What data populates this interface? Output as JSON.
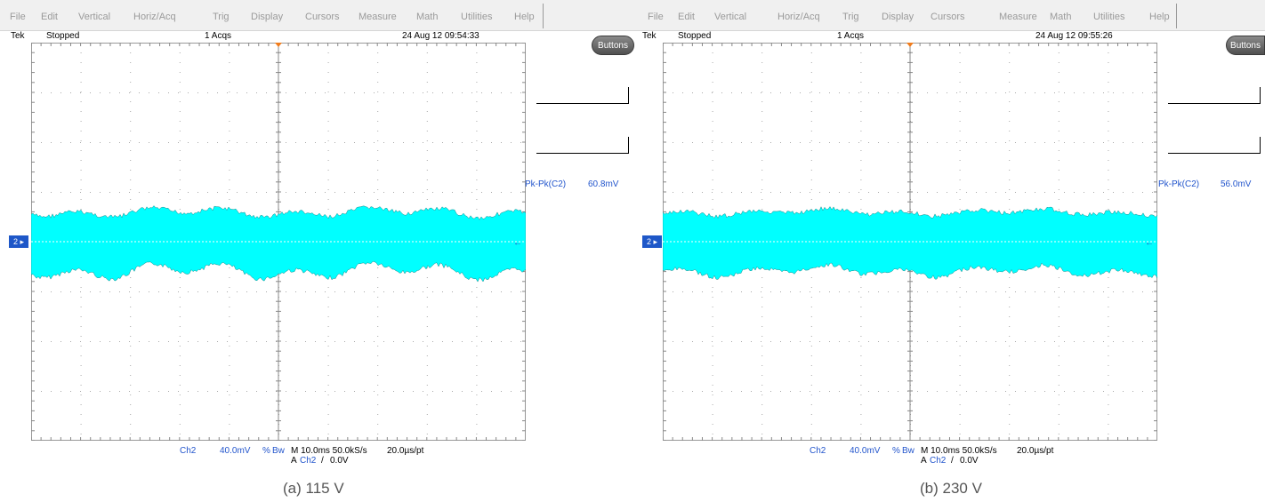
{
  "panels": [
    {
      "menu": [
        "File",
        "Edit",
        "Vertical",
        "Horiz/Acq",
        "Trig",
        "Display",
        "Cursors",
        "Measure",
        "Math",
        "Utilities",
        "Help"
      ],
      "status": {
        "brand": "Tek",
        "state": "Stopped",
        "acqs": "1 Acqs",
        "datetime": "24 Aug 12 09:54:33"
      },
      "buttons_label": "Buttons",
      "measurement": {
        "label": "Pk-Pk(C2)",
        "value": "60.8mV"
      },
      "channel_marker": "2",
      "bottom": {
        "ch": "Ch2",
        "scale": "40.0mV",
        "bw": "Bw",
        "timebase": "M 10.0ms 50.0kS/s",
        "trigger": "A",
        "trigger_ch": "Ch2",
        "trigger_slope": "/",
        "trigger_level": "0.0V",
        "resolution": "20.0µs/pt"
      },
      "caption": "(a) 115 V",
      "waveform_color": "#00ffff"
    },
    {
      "menu": [
        "File",
        "Edit",
        "Vertical",
        "Horiz/Acq",
        "Trig",
        "Display",
        "Cursors",
        "Measure",
        "Math",
        "Utilities",
        "Help"
      ],
      "status": {
        "brand": "Tek",
        "state": "Stopped",
        "acqs": "1 Acqs",
        "datetime": "24 Aug 12 09:55:26"
      },
      "buttons_label": "Buttons",
      "measurement": {
        "label": "Pk-Pk(C2)",
        "value": "56.0mV"
      },
      "channel_marker": "2",
      "bottom": {
        "ch": "Ch2",
        "scale": "40.0mV",
        "bw": "Bw",
        "timebase": "M 10.0ms 50.0kS/s",
        "trigger": "A",
        "trigger_ch": "Ch2",
        "trigger_slope": "/",
        "trigger_level": "0.0V",
        "resolution": "20.0µs/pt"
      },
      "caption": "(b) 230 V",
      "waveform_color": "#00ffff"
    }
  ]
}
